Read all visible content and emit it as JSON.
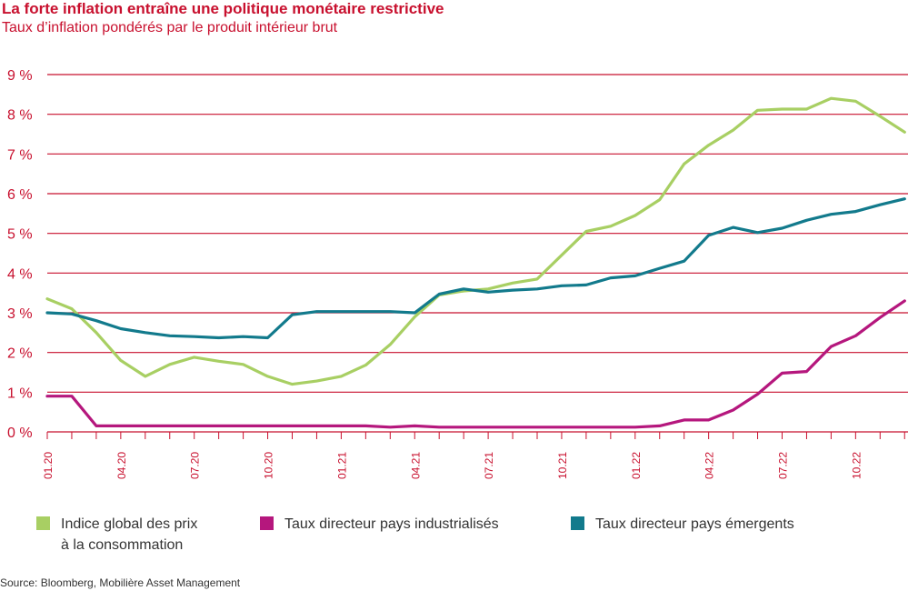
{
  "header": {
    "title": "La forte inflation entraîne une politique monétaire restrictive",
    "subtitle": "Taux d’inflation pondérés par le produit intérieur brut"
  },
  "colors": {
    "accent": "#c8102e",
    "grid": "#c8102e",
    "text": "#333333"
  },
  "legend": [
    {
      "line1": "Indice global des prix",
      "line2": "à la consommation",
      "color": "#a8cf63"
    },
    {
      "line1": "Taux directeur pays industrialisés",
      "line2": "",
      "color": "#b5177d"
    },
    {
      "line1": "Taux directeur pays émergents",
      "line2": "",
      "color": "#127a8c"
    }
  ],
  "source": "Source: Bloomberg, Mobilière Asset Management",
  "chart_data": {
    "type": "line",
    "title": "La forte inflation entraîne une politique monétaire restrictive",
    "subtitle": "Taux d’inflation pondérés par le produit intérieur brut",
    "ylim": [
      0,
      9
    ],
    "yticks": [
      0,
      1,
      2,
      3,
      4,
      5,
      6,
      7,
      8,
      9
    ],
    "ytick_labels": [
      "0 %",
      "1 %",
      "2 %",
      "3 %",
      "4 %",
      "5 %",
      "6 %",
      "7 %",
      "8 %",
      "9 %"
    ],
    "xtick_labels": [
      "01.20",
      "04.20",
      "07.20",
      "10.20",
      "01.21",
      "04.21",
      "07.21",
      "10.21",
      "01.22",
      "04.22",
      "07.22",
      "10.22"
    ],
    "grid": true,
    "x": [
      "01.20",
      "02.20",
      "03.20",
      "04.20",
      "05.20",
      "06.20",
      "07.20",
      "08.20",
      "09.20",
      "10.20",
      "11.20",
      "12.20",
      "01.21",
      "02.21",
      "03.21",
      "04.21",
      "05.21",
      "06.21",
      "07.21",
      "08.21",
      "09.21",
      "10.21",
      "11.21",
      "12.21",
      "01.22",
      "02.22",
      "03.22",
      "04.22",
      "05.22",
      "06.22",
      "07.22",
      "08.22",
      "09.22",
      "10.22",
      "11.22",
      "12.22"
    ],
    "series": [
      {
        "name": "Indice global des prix à la consommation",
        "color": "#a8cf63",
        "values": [
          3.35,
          3.1,
          2.5,
          1.8,
          1.4,
          1.7,
          1.88,
          1.78,
          1.7,
          1.4,
          1.2,
          1.28,
          1.4,
          1.68,
          2.2,
          2.9,
          3.45,
          3.55,
          3.6,
          3.75,
          3.85,
          4.45,
          5.05,
          5.18,
          5.45,
          5.85,
          6.75,
          7.22,
          7.6,
          8.1,
          8.13,
          8.13,
          8.4,
          8.33,
          7.95,
          7.55
        ]
      },
      {
        "name": "Taux directeur pays industrialisés",
        "color": "#b5177d",
        "values": [
          0.9,
          0.9,
          0.15,
          0.15,
          0.15,
          0.15,
          0.15,
          0.15,
          0.15,
          0.15,
          0.15,
          0.15,
          0.15,
          0.15,
          0.12,
          0.15,
          0.12,
          0.12,
          0.12,
          0.12,
          0.12,
          0.12,
          0.12,
          0.12,
          0.12,
          0.15,
          0.3,
          0.3,
          0.55,
          0.95,
          1.48,
          1.52,
          2.15,
          2.42,
          2.88,
          3.3
        ]
      },
      {
        "name": "Taux directeur pays émergents",
        "color": "#127a8c",
        "values": [
          3.0,
          2.97,
          2.8,
          2.6,
          2.5,
          2.42,
          2.4,
          2.37,
          2.4,
          2.37,
          2.95,
          3.03,
          3.03,
          3.03,
          3.03,
          3.0,
          3.47,
          3.6,
          3.52,
          3.57,
          3.6,
          3.68,
          3.7,
          3.88,
          3.93,
          4.12,
          4.3,
          4.95,
          5.15,
          5.02,
          5.13,
          5.33,
          5.48,
          5.55,
          5.72,
          5.87
        ]
      }
    ]
  }
}
